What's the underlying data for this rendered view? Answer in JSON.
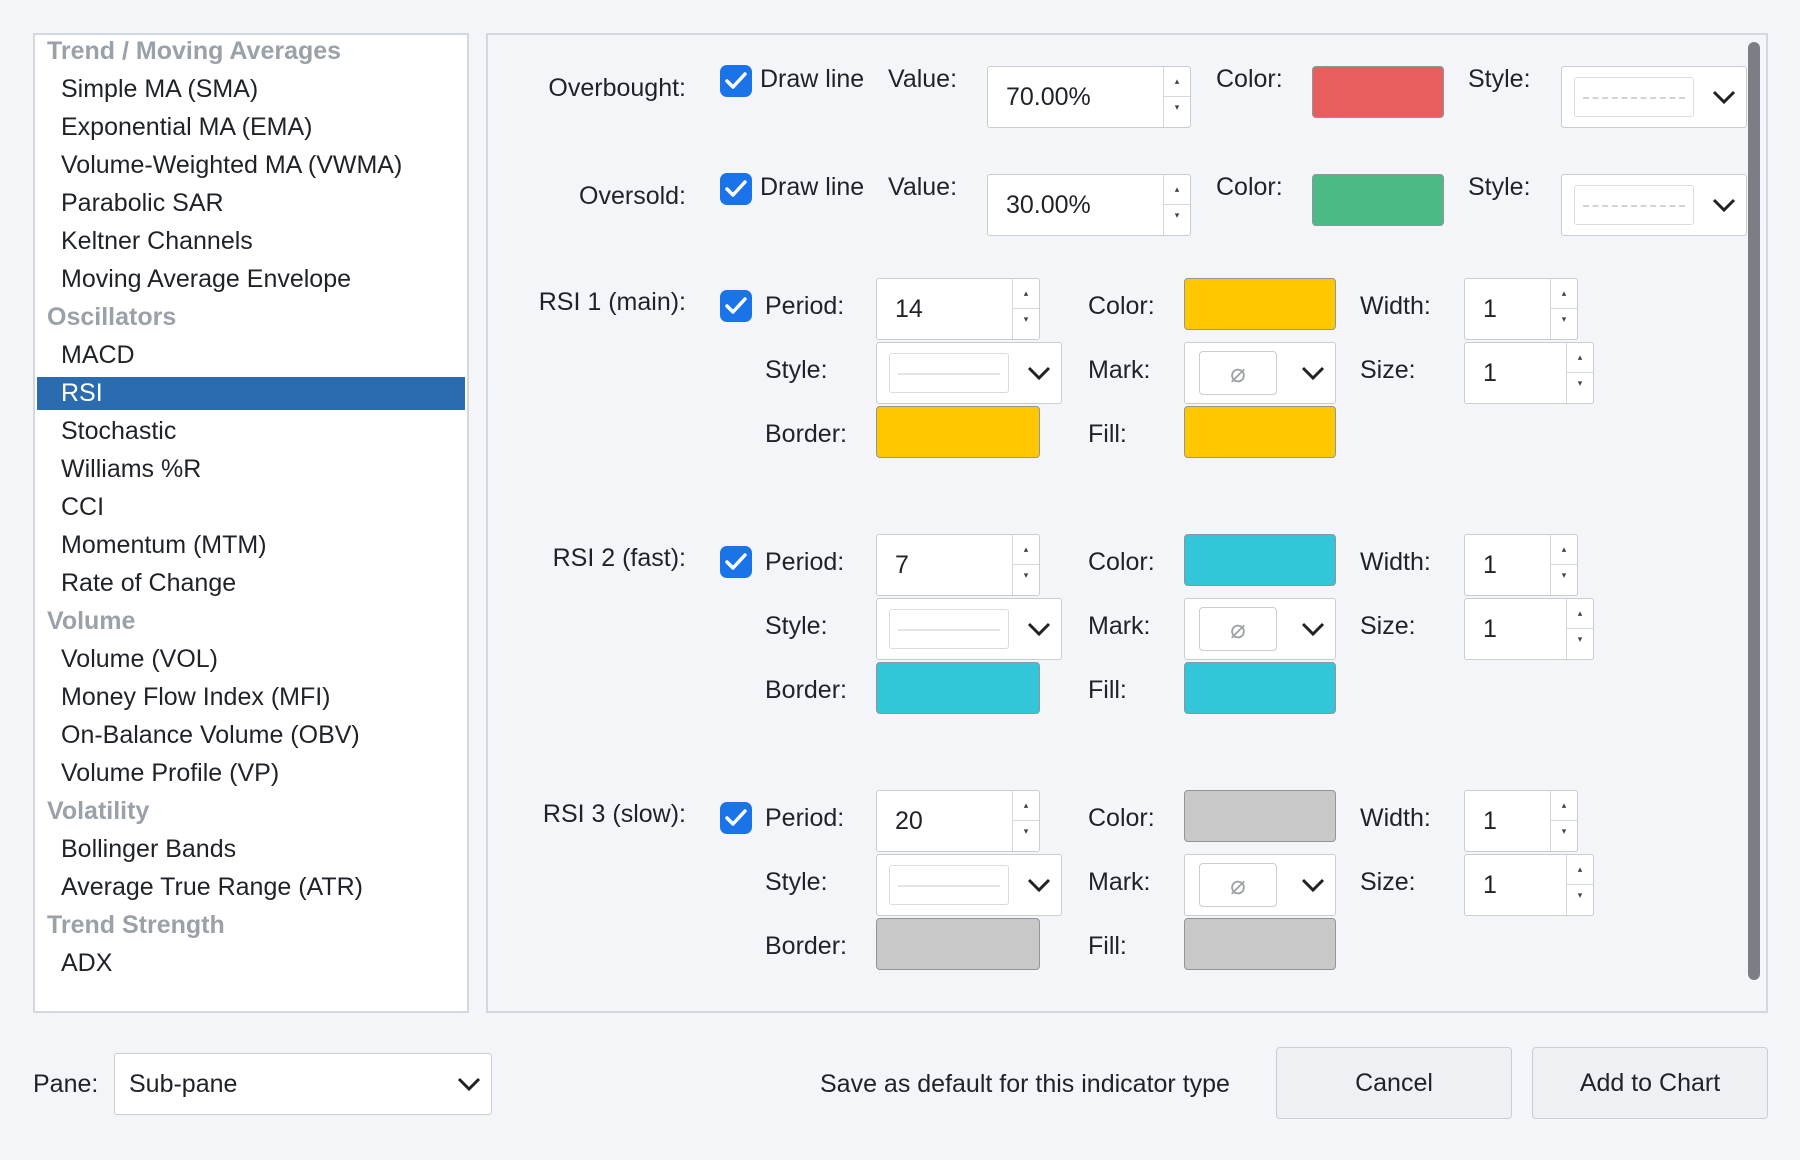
{
  "sidebar": {
    "rows": [
      {
        "kind": "group",
        "label": "Trend / Moving Averages"
      },
      {
        "kind": "item",
        "label": "Simple MA (SMA)"
      },
      {
        "kind": "item",
        "label": "Exponential MA (EMA)"
      },
      {
        "kind": "item",
        "label": "Volume-Weighted MA (VWMA)"
      },
      {
        "kind": "item",
        "label": "Parabolic SAR"
      },
      {
        "kind": "item",
        "label": "Keltner Channels"
      },
      {
        "kind": "item",
        "label": "Moving Average Envelope"
      },
      {
        "kind": "group",
        "label": "Oscillators"
      },
      {
        "kind": "item",
        "label": "MACD"
      },
      {
        "kind": "item",
        "label": "RSI",
        "selected": true
      },
      {
        "kind": "item",
        "label": "Stochastic"
      },
      {
        "kind": "item",
        "label": "Williams %R"
      },
      {
        "kind": "item",
        "label": "CCI"
      },
      {
        "kind": "item",
        "label": "Momentum (MTM)"
      },
      {
        "kind": "item",
        "label": "Rate of Change"
      },
      {
        "kind": "group",
        "label": "Volume"
      },
      {
        "kind": "item",
        "label": "Volume (VOL)"
      },
      {
        "kind": "item",
        "label": "Money Flow Index (MFI)"
      },
      {
        "kind": "item",
        "label": "On-Balance Volume (OBV)"
      },
      {
        "kind": "item",
        "label": "Volume Profile (VP)"
      },
      {
        "kind": "group",
        "label": "Volatility"
      },
      {
        "kind": "item",
        "label": "Bollinger Bands"
      },
      {
        "kind": "item",
        "label": "Average True Range (ATR)"
      },
      {
        "kind": "group",
        "label": "Trend Strength"
      },
      {
        "kind": "item",
        "label": "ADX"
      }
    ]
  },
  "levels": {
    "overbought": {
      "label": "Overbought:",
      "draw_label": "Draw line",
      "value_label": "Value:",
      "value": "70.00%",
      "color_label": "Color:",
      "color": "#e85d5d",
      "style_label": "Style:"
    },
    "oversold": {
      "label": "Oversold:",
      "draw_label": "Draw line",
      "value_label": "Value:",
      "value": "30.00%",
      "color_label": "Color:",
      "color": "#4cba84",
      "style_label": "Style:"
    }
  },
  "lines": [
    {
      "label": "RSI 1 (main):",
      "period": "14",
      "color": "#ffc700",
      "border": "#ffc700",
      "fill": "#ffc700",
      "width": "1",
      "size": "1"
    },
    {
      "label": "RSI 2 (fast):",
      "period": "7",
      "color": "#33c6db",
      "border": "#33c6db",
      "fill": "#33c6db",
      "width": "1",
      "size": "1"
    },
    {
      "label": "RSI 3 (slow):",
      "period": "20",
      "color": "#c8c8c8",
      "border": "#c8c8c8",
      "fill": "#c8c8c8",
      "width": "1",
      "size": "1"
    }
  ],
  "line_field_labels": {
    "period": "Period:",
    "color": "Color:",
    "width": "Width:",
    "style": "Style:",
    "mark": "Mark:",
    "size": "Size:",
    "border": "Border:",
    "fill": "Fill:"
  },
  "mark_symbol": "⌀",
  "bottom": {
    "pane_label": "Pane:",
    "pane_value": "Sub-pane",
    "save_default": "Save as default for this indicator type",
    "cancel": "Cancel",
    "add": "Add to Chart"
  },
  "accent": "#1a73e8",
  "selection_color": "#2b6cb0"
}
